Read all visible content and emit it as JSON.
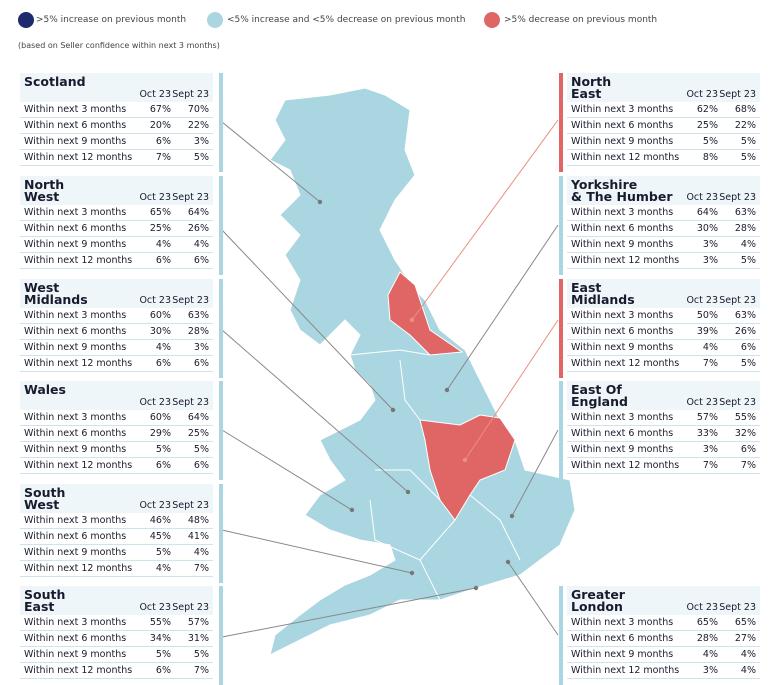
{
  "legend": [
    {
      "label": ">5% increase on previous month",
      "color": "#1d2a6b"
    },
    {
      "label": "<5% increase and <5% decrease on previous month",
      "color": "#a9d6e0"
    },
    {
      "label": ">5% decrease on previous month",
      "color": "#e06666"
    }
  ],
  "note": "(based on Seller confidence within next 3 months)",
  "regions": [
    {
      "name": "Scotland",
      "columns": [
        "Oct 23",
        "Sept 23"
      ],
      "rows": [
        [
          "Within next 3 months",
          "67%",
          "70%"
        ],
        [
          "Within next 6 months",
          "20%",
          "22%"
        ],
        [
          "Within next 9 months",
          "6%",
          "3%"
        ],
        [
          "Within next 12 months",
          "7%",
          "5%"
        ]
      ]
    },
    {
      "name": "North\nWest",
      "columns": [
        "Oct 23",
        "Sept 23"
      ],
      "rows": [
        [
          "Within next 3 months",
          "65%",
          "64%"
        ],
        [
          "Within next 6 months",
          "25%",
          "26%"
        ],
        [
          "Within next 9 months",
          "4%",
          "4%"
        ],
        [
          "Within next 12 months",
          "6%",
          "6%"
        ]
      ]
    },
    {
      "name": "West\nMidlands",
      "columns": [
        "Oct 23",
        "Sept 23"
      ],
      "rows": [
        [
          "Within next 3 months",
          "60%",
          "63%"
        ],
        [
          "Within next 6 months",
          "30%",
          "28%"
        ],
        [
          "Within next 9 months",
          "4%",
          "3%"
        ],
        [
          "Within next 12 months",
          "6%",
          "6%"
        ]
      ]
    },
    {
      "name": "Wales",
      "columns": [
        "Oct 23",
        "Sept 23"
      ],
      "rows": [
        [
          "Within next 3 months",
          "60%",
          "64%"
        ],
        [
          "Within next 6 months",
          "29%",
          "25%"
        ],
        [
          "Within next 9 months",
          "5%",
          "5%"
        ],
        [
          "Within next 12 months",
          "6%",
          "6%"
        ]
      ]
    },
    {
      "name": "South\nWest",
      "columns": [
        "Oct 23",
        "Sept 23"
      ],
      "rows": [
        [
          "Within next 3 months",
          "46%",
          "48%"
        ],
        [
          "Within next 6 months",
          "45%",
          "41%"
        ],
        [
          "Within next 9 months",
          "5%",
          "4%"
        ],
        [
          "Within next 12 months",
          "4%",
          "7%"
        ]
      ]
    },
    {
      "name": "South\nEast",
      "columns": [
        "Oct 23",
        "Sept 23"
      ],
      "rows": [
        [
          "Within next 3 months",
          "55%",
          "57%"
        ],
        [
          "Within next 6 months",
          "34%",
          "31%"
        ],
        [
          "Within next 9 months",
          "5%",
          "5%"
        ],
        [
          "Within next 12 months",
          "6%",
          "7%"
        ]
      ]
    },
    {
      "name": "North\nEast",
      "columns": [
        "Oct 23",
        "Sept 23"
      ],
      "rows": [
        [
          "Within next 3 months",
          "62%",
          "68%"
        ],
        [
          "Within next 6 months",
          "25%",
          "22%"
        ],
        [
          "Within next 9 months",
          "5%",
          "5%"
        ],
        [
          "Within next 12 months",
          "8%",
          "5%"
        ]
      ]
    },
    {
      "name": "Yorkshire\n& The Humber",
      "columns": [
        "Oct 23",
        "Sept 23"
      ],
      "rows": [
        [
          "Within next 3 months",
          "64%",
          "63%"
        ],
        [
          "Within next 6 months",
          "30%",
          "28%"
        ],
        [
          "Within next 9 months",
          "3%",
          "4%"
        ],
        [
          "Within next 12 months",
          "3%",
          "5%"
        ]
      ]
    },
    {
      "name": "East\nMidlands",
      "columns": [
        "Oct 23",
        "Sept 23"
      ],
      "rows": [
        [
          "Within next 3 months",
          "50%",
          "63%"
        ],
        [
          "Within next 6 months",
          "39%",
          "26%"
        ],
        [
          "Within next 9 months",
          "4%",
          "6%"
        ],
        [
          "Within next 12 months",
          "7%",
          "5%"
        ]
      ]
    },
    {
      "name": "East Of\nEngland",
      "columns": [
        "Oct 23",
        "Sept 23"
      ],
      "rows": [
        [
          "Within next 3 months",
          "57%",
          "55%"
        ],
        [
          "Within next 6 months",
          "33%",
          "32%"
        ],
        [
          "Within next 9 months",
          "3%",
          "6%"
        ],
        [
          "Within next 12 months",
          "7%",
          "7%"
        ]
      ]
    },
    {
      "name": "Greater\nLondon",
      "columns": [
        "Oct 23",
        "Sept 23"
      ],
      "rows": [
        [
          "Within next 3 months",
          "65%",
          "65%"
        ],
        [
          "Within next 6 months",
          "28%",
          "27%"
        ],
        [
          "Within next 9 months",
          "4%",
          "4%"
        ],
        [
          "Within next 12 months",
          "3%",
          "4%"
        ]
      ]
    }
  ]
}
